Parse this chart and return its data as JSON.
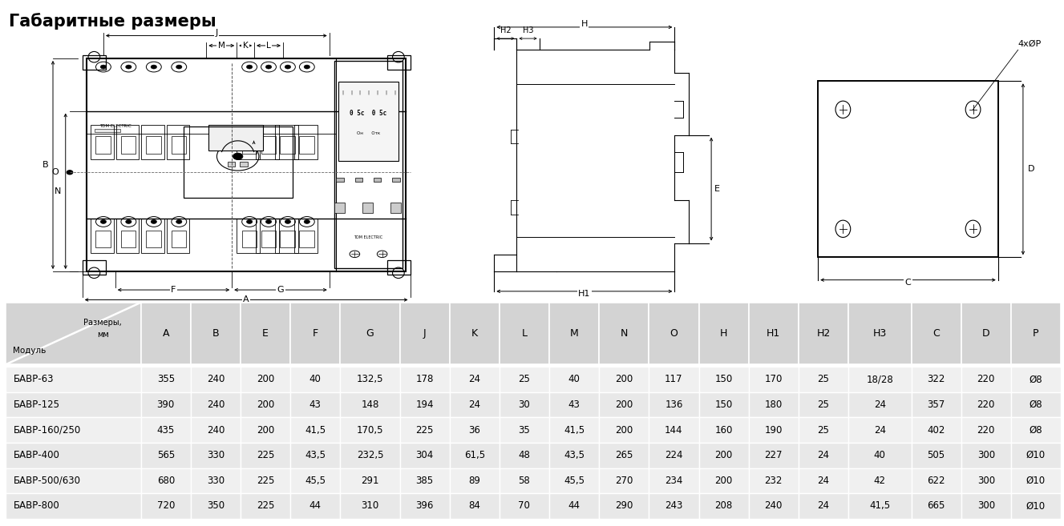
{
  "title": "Габаритные размеры",
  "table_header": [
    "",
    "A",
    "B",
    "E",
    "F",
    "G",
    "J",
    "K",
    "L",
    "M",
    "N",
    "O",
    "H",
    "H1",
    "H2",
    "H3",
    "C",
    "D",
    "P"
  ],
  "header_line1": "Размеры,",
  "header_line2": "      мм",
  "header_line3": "Модуль",
  "table_rows": [
    [
      "БАВР-63",
      "355",
      "240",
      "200",
      "40",
      "132,5",
      "178",
      "24",
      "25",
      "40",
      "200",
      "117",
      "150",
      "170",
      "25",
      "18/28",
      "322",
      "220",
      "Ø8"
    ],
    [
      "БАВР-125",
      "390",
      "240",
      "200",
      "43",
      "148",
      "194",
      "24",
      "30",
      "43",
      "200",
      "136",
      "150",
      "180",
      "25",
      "24",
      "357",
      "220",
      "Ø8"
    ],
    [
      "БАВР-160/250",
      "435",
      "240",
      "200",
      "41,5",
      "170,5",
      "225",
      "36",
      "35",
      "41,5",
      "200",
      "144",
      "160",
      "190",
      "25",
      "24",
      "402",
      "220",
      "Ø8"
    ],
    [
      "БАВР-400",
      "565",
      "330",
      "225",
      "43,5",
      "232,5",
      "304",
      "61,5",
      "48",
      "43,5",
      "265",
      "224",
      "200",
      "227",
      "24",
      "40",
      "505",
      "300",
      "Ø10"
    ],
    [
      "БАВР-500/630",
      "680",
      "330",
      "225",
      "45,5",
      "291",
      "385",
      "89",
      "58",
      "45,5",
      "270",
      "234",
      "200",
      "232",
      "24",
      "42",
      "622",
      "300",
      "Ø10"
    ],
    [
      "БАВР-800",
      "720",
      "350",
      "225",
      "44",
      "310",
      "396",
      "84",
      "70",
      "44",
      "290",
      "243",
      "208",
      "240",
      "24",
      "41,5",
      "665",
      "300",
      "Ø10"
    ]
  ],
  "col_widths": [
    1.55,
    0.57,
    0.57,
    0.57,
    0.57,
    0.68,
    0.57,
    0.57,
    0.57,
    0.57,
    0.57,
    0.57,
    0.57,
    0.57,
    0.57,
    0.72,
    0.57,
    0.57,
    0.57
  ],
  "header_bg": "#d3d3d3",
  "row_bg_even": "#e8e8e8",
  "row_bg_odd": "#f0f0f0",
  "text_color": "#000000",
  "bg_color": "#ffffff",
  "line_color": "#333333"
}
